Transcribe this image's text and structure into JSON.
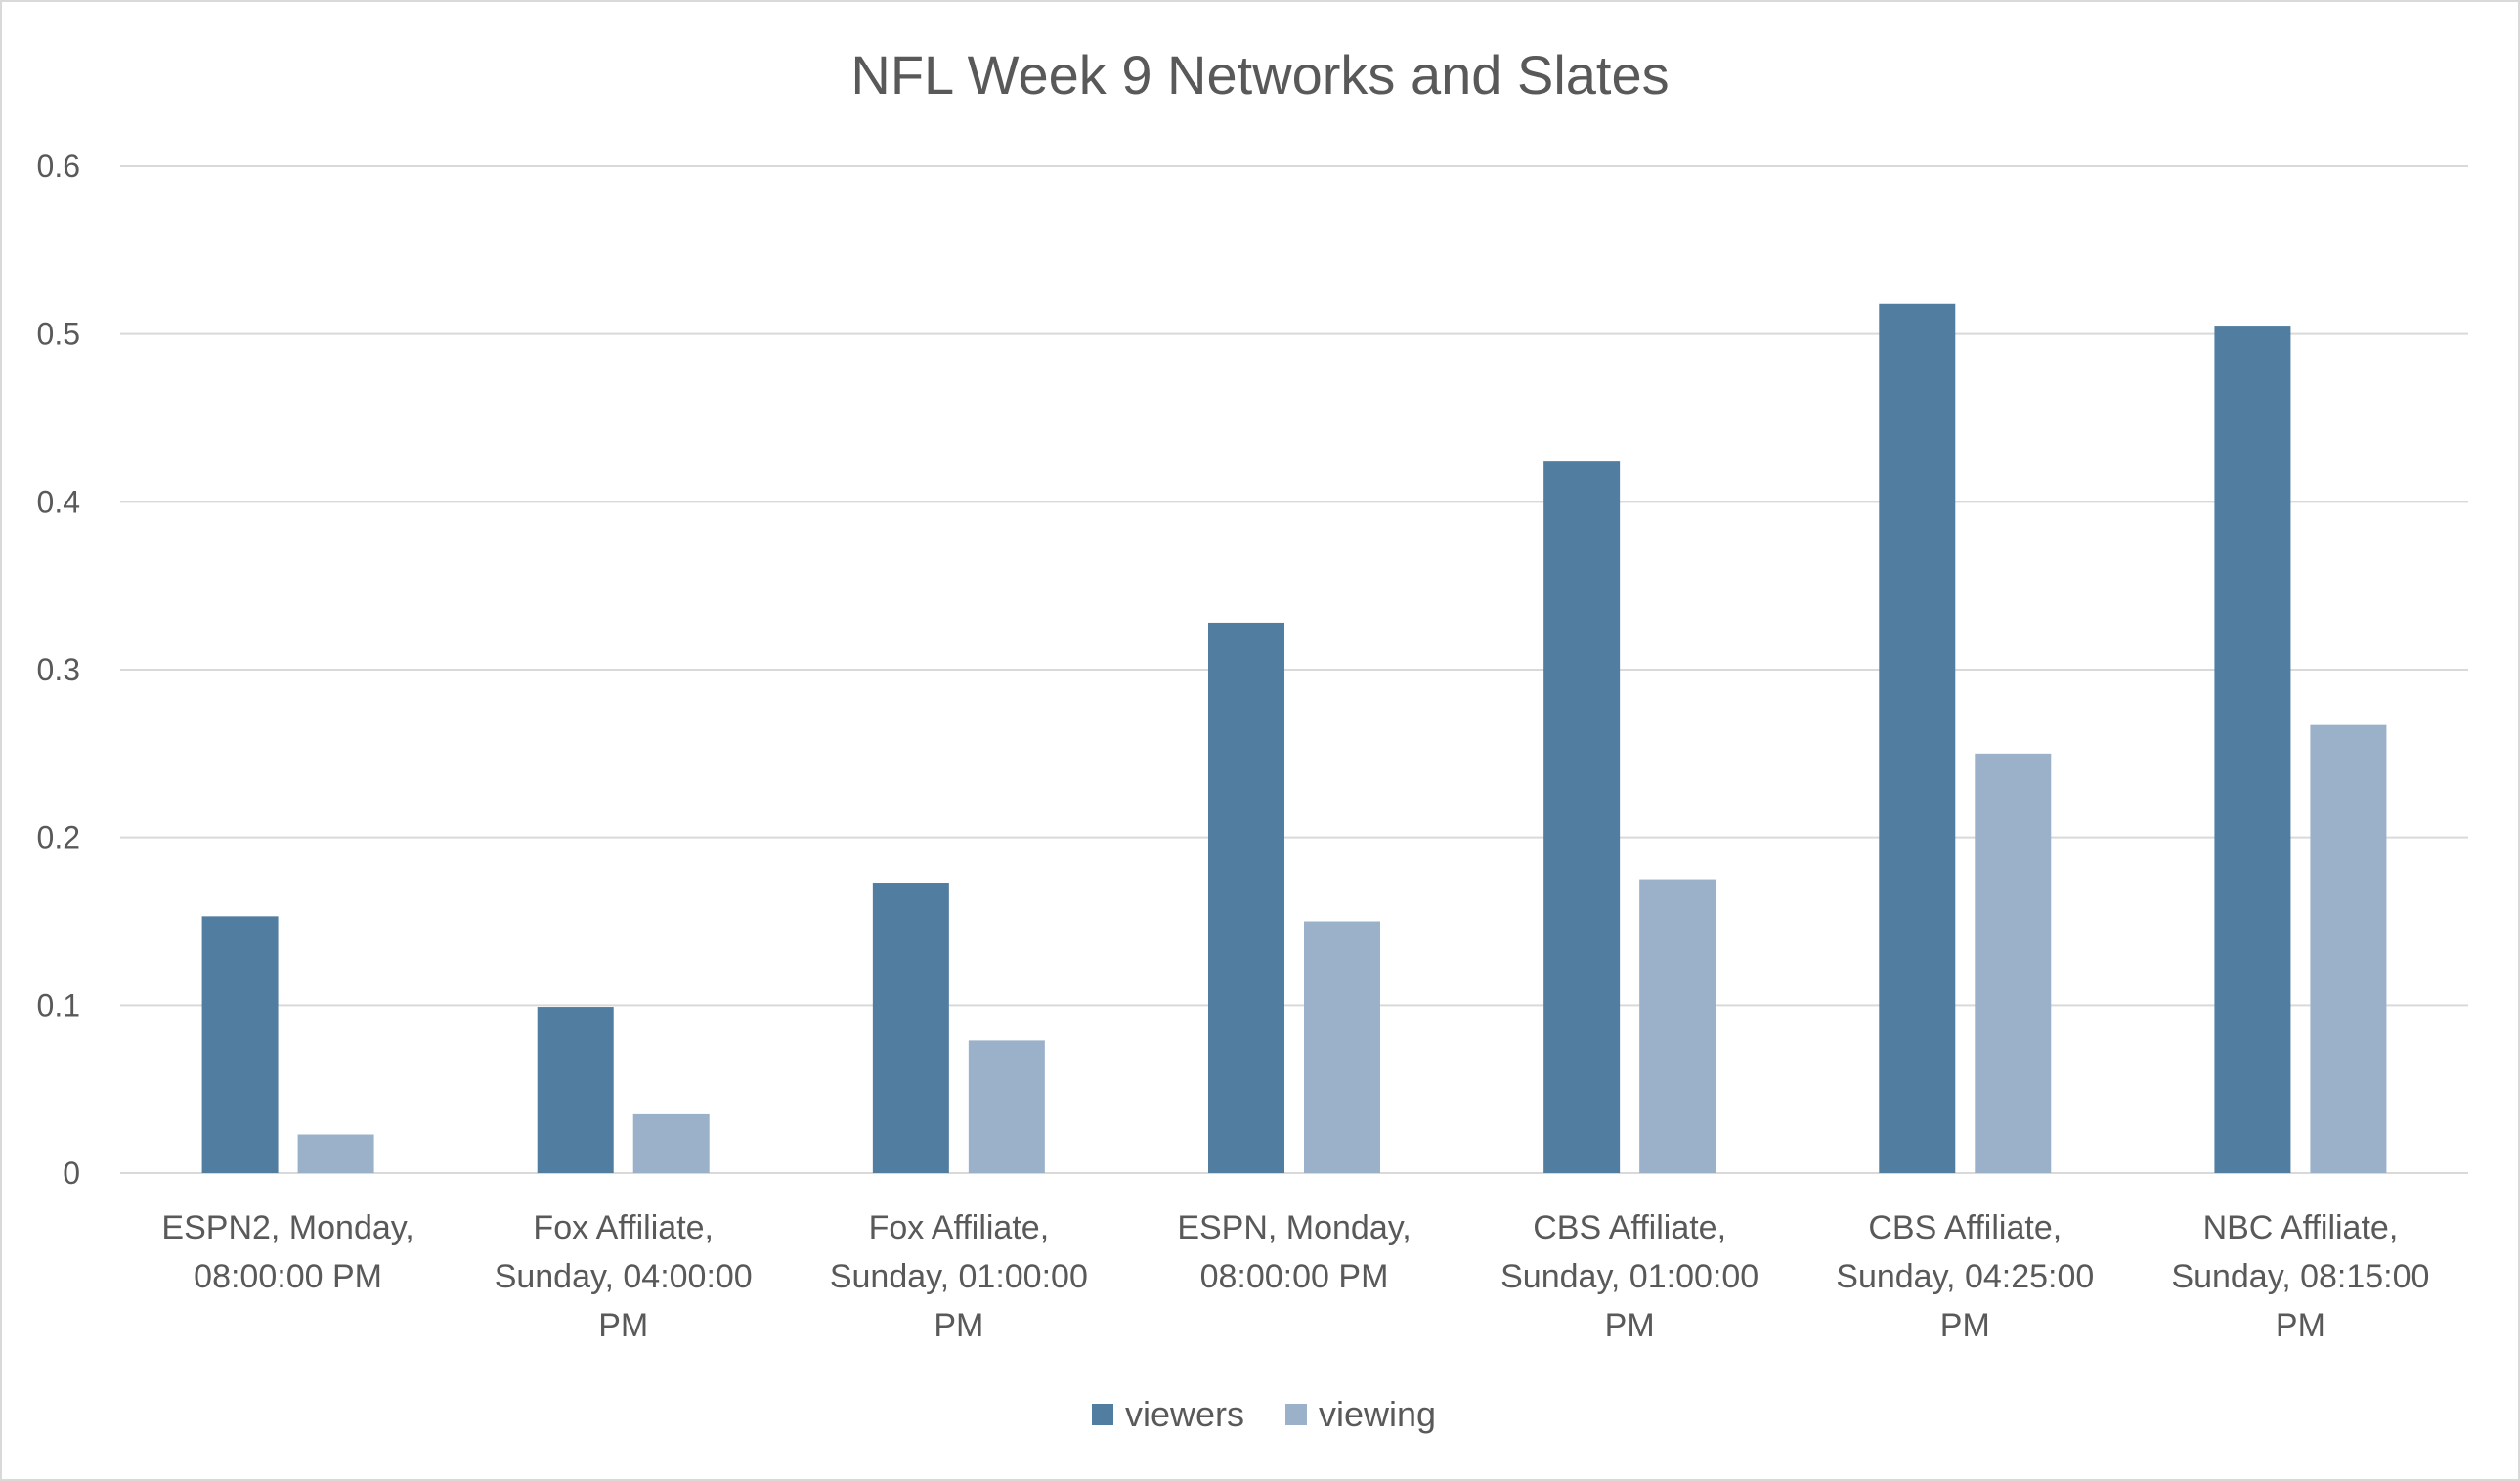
{
  "chart_data": {
    "type": "bar",
    "title": "NFL Week 9 Networks and Slates",
    "xlabel": "",
    "ylabel": "",
    "ylim": [
      0,
      0.6
    ],
    "yticks": [
      "0",
      "0.1",
      "0.2",
      "0.3",
      "0.4",
      "0.5",
      "0.6"
    ],
    "grid": true,
    "legend_position": "bottom",
    "categories": [
      [
        "ESPN2, Monday,",
        "08:00:00 PM"
      ],
      [
        "Fox Affiliate,",
        "Sunday, 04:00:00",
        "PM"
      ],
      [
        "Fox Affiliate,",
        "Sunday, 01:00:00",
        "PM"
      ],
      [
        "ESPN, Monday,",
        "08:00:00 PM"
      ],
      [
        "CBS Affiliate,",
        "Sunday, 01:00:00",
        "PM"
      ],
      [
        "CBS Affiliate,",
        "Sunday, 04:25:00",
        "PM"
      ],
      [
        "NBC Affiliate,",
        "Sunday, 08:15:00",
        "PM"
      ]
    ],
    "series": [
      {
        "name": "viewers",
        "color": "#517ea0",
        "values": [
          0.153,
          0.099,
          0.173,
          0.328,
          0.424,
          0.518,
          0.505
        ]
      },
      {
        "name": "viewing",
        "color": "#9bb1ca",
        "values": [
          0.023,
          0.035,
          0.079,
          0.15,
          0.175,
          0.25,
          0.267
        ]
      }
    ]
  }
}
